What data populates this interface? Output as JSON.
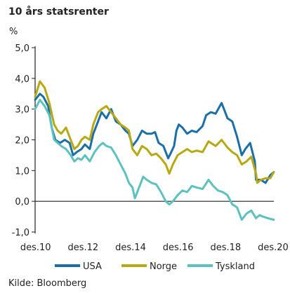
{
  "chart_data": {
    "type": "line",
    "title": "10 års statsrenter",
    "ylabel": "%",
    "source": "Kilde: Bloomberg",
    "x_tick_labels": [
      "des.10",
      "des.12",
      "des.14",
      "des.16",
      "des.18",
      "des.20"
    ],
    "y_tick_labels": [
      "-1,0",
      "0,0",
      "1,0",
      "2,0",
      "3,0",
      "4,0",
      "5,0"
    ],
    "ylim": [
      -1,
      5
    ],
    "xlim": [
      2010.9,
      2020.95
    ],
    "grid": false,
    "legend_position": "bottom",
    "series": [
      {
        "name": "USA",
        "color": "#1b6fa8",
        "x": [
          2010.9,
          2011.1,
          2011.25,
          2011.45,
          2011.6,
          2011.75,
          2011.95,
          2012.15,
          2012.35,
          2012.5,
          2012.65,
          2012.85,
          2013.0,
          2013.2,
          2013.35,
          2013.55,
          2013.7,
          2013.9,
          2014.1,
          2014.3,
          2014.5,
          2014.7,
          2014.85,
          2015.0,
          2015.2,
          2015.4,
          2015.6,
          2015.8,
          2015.95,
          2016.1,
          2016.3,
          2016.5,
          2016.6,
          2016.75,
          2016.85,
          2016.95,
          2017.1,
          2017.3,
          2017.5,
          2017.7,
          2017.95,
          2018.1,
          2018.3,
          2018.5,
          2018.75,
          2018.85,
          2019.0,
          2019.2,
          2019.4,
          2019.6,
          2019.75,
          2019.95,
          2020.15,
          2020.2,
          2020.4,
          2020.6,
          2020.8,
          2020.95
        ],
        "values": [
          3.3,
          3.5,
          3.4,
          3.1,
          2.4,
          2.0,
          1.9,
          2.0,
          1.9,
          1.5,
          1.6,
          1.7,
          1.85,
          1.7,
          2.2,
          2.6,
          2.9,
          2.7,
          3.0,
          2.6,
          2.5,
          2.3,
          2.2,
          1.8,
          2.0,
          2.3,
          2.2,
          2.2,
          2.25,
          1.9,
          1.8,
          1.4,
          1.55,
          1.8,
          2.3,
          2.5,
          2.4,
          2.2,
          2.3,
          2.25,
          2.45,
          2.8,
          2.9,
          2.85,
          3.2,
          3.0,
          2.7,
          2.6,
          2.1,
          1.5,
          1.7,
          1.9,
          1.3,
          0.7,
          0.7,
          0.6,
          0.85,
          0.95
        ]
      },
      {
        "name": "Norge",
        "color": "#b8a812",
        "x": [
          2010.9,
          2011.1,
          2011.3,
          2011.5,
          2011.7,
          2011.85,
          2012.0,
          2012.2,
          2012.4,
          2012.55,
          2012.7,
          2012.85,
          2013.0,
          2013.2,
          2013.35,
          2013.55,
          2013.7,
          2013.9,
          2014.1,
          2014.3,
          2014.5,
          2014.7,
          2014.85,
          2015.0,
          2015.2,
          2015.4,
          2015.6,
          2015.8,
          2016.0,
          2016.2,
          2016.4,
          2016.55,
          2016.7,
          2016.9,
          2017.1,
          2017.3,
          2017.5,
          2017.7,
          2017.95,
          2018.2,
          2018.5,
          2018.75,
          2019.0,
          2019.2,
          2019.4,
          2019.6,
          2019.8,
          2020.0,
          2020.2,
          2020.25,
          2020.4,
          2020.6,
          2020.8,
          2020.95
        ],
        "values": [
          3.4,
          3.9,
          3.7,
          3.2,
          2.5,
          2.3,
          2.2,
          2.4,
          2.0,
          1.7,
          1.8,
          2.0,
          2.1,
          2.0,
          2.5,
          2.9,
          3.0,
          3.1,
          2.9,
          2.7,
          2.5,
          2.4,
          2.3,
          1.7,
          1.5,
          1.8,
          1.7,
          1.5,
          1.55,
          1.4,
          1.2,
          0.9,
          1.2,
          1.5,
          1.6,
          1.7,
          1.6,
          1.65,
          1.6,
          1.95,
          1.8,
          2.0,
          1.75,
          1.6,
          1.5,
          1.2,
          1.3,
          1.45,
          0.9,
          0.6,
          0.7,
          0.75,
          0.75,
          0.95
        ]
      },
      {
        "name": "Tyskland",
        "color": "#5bc2c0",
        "x": [
          2010.9,
          2011.1,
          2011.3,
          2011.5,
          2011.7,
          2011.85,
          2012.0,
          2012.2,
          2012.4,
          2012.55,
          2012.7,
          2012.85,
          2013.0,
          2013.2,
          2013.4,
          2013.6,
          2013.75,
          2013.9,
          2014.1,
          2014.3,
          2014.5,
          2014.7,
          2014.85,
          2015.0,
          2015.1,
          2015.3,
          2015.45,
          2015.6,
          2015.8,
          2016.0,
          2016.2,
          2016.4,
          2016.55,
          2016.7,
          2016.9,
          2017.1,
          2017.3,
          2017.5,
          2017.7,
          2017.95,
          2018.2,
          2018.4,
          2018.6,
          2018.8,
          2019.0,
          2019.2,
          2019.4,
          2019.6,
          2019.8,
          2020.0,
          2020.2,
          2020.35,
          2020.5,
          2020.7,
          2020.95
        ],
        "values": [
          3.0,
          3.3,
          3.1,
          2.8,
          2.0,
          1.9,
          1.8,
          1.7,
          1.5,
          1.3,
          1.4,
          1.35,
          1.5,
          1.3,
          1.6,
          1.8,
          1.9,
          1.8,
          1.75,
          1.5,
          1.2,
          0.9,
          0.6,
          0.45,
          0.1,
          0.5,
          0.8,
          0.7,
          0.6,
          0.55,
          0.3,
          0.0,
          -0.1,
          0.0,
          0.2,
          0.35,
          0.3,
          0.5,
          0.45,
          0.4,
          0.7,
          0.5,
          0.35,
          0.3,
          0.2,
          -0.1,
          -0.2,
          -0.6,
          -0.4,
          -0.3,
          -0.55,
          -0.45,
          -0.5,
          -0.55,
          -0.6
        ]
      }
    ]
  }
}
